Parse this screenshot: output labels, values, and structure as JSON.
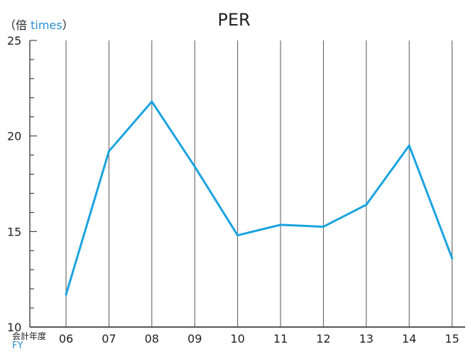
{
  "chart_data": {
    "type": "line",
    "title": "PER",
    "ylabel_ja": "（倍",
    "ylabel_en": "times",
    "ylabel_close": "）",
    "xlabel_ja": "会計年度",
    "xlabel_en": "FY",
    "categories": [
      "06",
      "07",
      "08",
      "09",
      "10",
      "11",
      "12",
      "13",
      "14",
      "15"
    ],
    "series": [
      {
        "values": [
          11.7,
          19.2,
          21.8,
          18.4,
          14.8,
          15.35,
          15.25,
          16.4,
          19.5,
          13.6
        ]
      }
    ],
    "ylim": [
      10,
      25
    ],
    "yticks": [
      10,
      15,
      20,
      25
    ],
    "line_color": "#1aa3e0",
    "grid": true
  }
}
